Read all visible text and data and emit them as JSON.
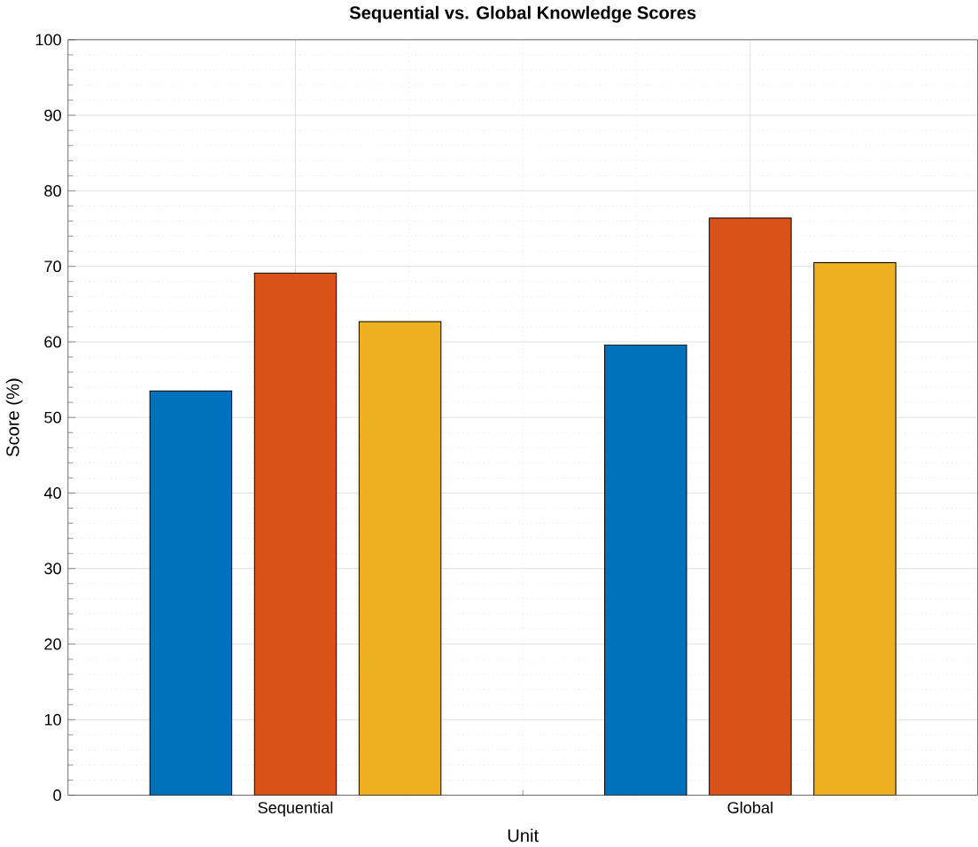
{
  "chart_data": {
    "type": "bar",
    "title": "Sequential vs. Global Knowledge Scores",
    "xlabel": "Unit",
    "ylabel": "Score (%)",
    "categories": [
      "Sequential",
      "Global"
    ],
    "series": [
      {
        "color": "#0072bd",
        "values": [
          53.5,
          59.6
        ]
      },
      {
        "color": "#d95319",
        "values": [
          69.1,
          76.4
        ]
      },
      {
        "color": "#edb120",
        "values": [
          62.7,
          70.5
        ]
      }
    ],
    "ylim": [
      0,
      100
    ],
    "yticks": [
      0,
      10,
      20,
      30,
      40,
      50,
      60,
      70,
      80,
      90,
      100
    ],
    "grid": true
  }
}
